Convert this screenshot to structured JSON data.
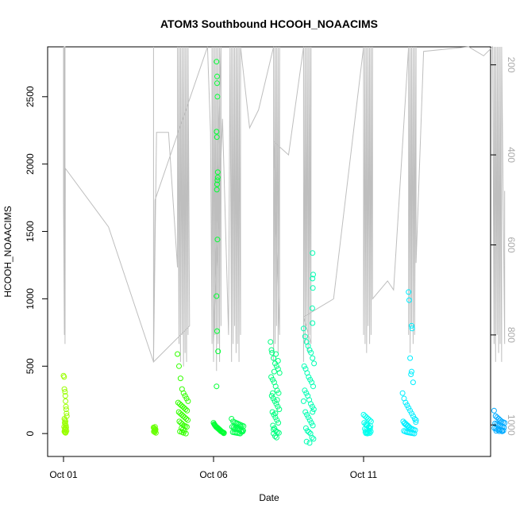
{
  "chart_data": {
    "type": "scatter",
    "title": "ATOM3 Southbound HCOOH_NOAACIMS",
    "xlabel": "Date",
    "ylabel": "HCOOH_NOAACIMS",
    "x_range_days": [
      0.0,
      14.83
    ],
    "ylim": [
      -170,
      2870
    ],
    "y_ticks": [
      0,
      500,
      1000,
      1500,
      2000,
      2500
    ],
    "x_ticks": [
      {
        "label": "Oct 01",
        "day": 0
      },
      {
        "label": "Oct 06",
        "day": 5
      },
      {
        "label": "Oct 11",
        "day": 10
      }
    ],
    "secondary_axis": {
      "description": "pressure",
      "lim": [
        1070,
        160
      ],
      "ticks": [
        200,
        400,
        600,
        800,
        1000
      ],
      "color": "#bebebe"
    },
    "grid": false,
    "legend": "none",
    "point_colors": {
      "oct01": "#99ff00",
      "oct04": "#66ff00",
      "oct05": "#33ff00",
      "oct06": "#00ff33",
      "oct07": "#00ff4d",
      "oct08": "#00ff80",
      "oct09": "#00ffb3",
      "oct11": "#00ffee",
      "oct12": "#00eeff",
      "oct14": "#00aaff"
    },
    "series": [
      {
        "color_key": "oct01",
        "x": [
          0.0,
          0.02,
          0.03,
          0.05,
          0.06,
          0.07,
          0.08,
          0.09,
          0.1,
          0.11,
          0.03,
          0.05,
          0.07,
          0.04,
          0.06,
          0.08,
          0.02,
          0.09,
          0.05,
          0.07,
          0.06,
          0.04,
          0.1,
          0.03,
          0.08,
          0.05,
          0.07
        ],
        "y": [
          430,
          420,
          330,
          310,
          280,
          240,
          200,
          180,
          150,
          130,
          110,
          100,
          90,
          80,
          70,
          60,
          50,
          45,
          40,
          35,
          30,
          25,
          20,
          15,
          10,
          8,
          5
        ]
      },
      {
        "color_key": "oct04",
        "x": [
          3.0,
          3.02,
          3.05,
          3.07,
          3.03,
          3.06,
          3.01,
          3.04,
          3.08,
          3.05
        ],
        "y": [
          45,
          40,
          35,
          30,
          25,
          20,
          15,
          10,
          5,
          50
        ]
      },
      {
        "color_key": "oct05",
        "x": [
          3.8,
          3.85,
          3.9,
          3.95,
          4.0,
          4.05,
          4.1,
          4.15,
          3.82,
          3.87,
          3.92,
          3.97,
          4.02,
          4.07,
          4.12,
          3.84,
          3.89,
          3.94,
          3.99,
          4.04,
          4.09,
          4.14,
          3.86,
          3.91,
          3.96,
          4.01,
          4.06,
          4.11,
          3.93,
          3.98,
          4.03,
          3.88,
          3.95,
          4.0,
          4.08
        ],
        "y": [
          590,
          500,
          410,
          330,
          300,
          280,
          260,
          240,
          230,
          220,
          210,
          200,
          190,
          180,
          170,
          160,
          150,
          140,
          130,
          120,
          110,
          100,
          90,
          80,
          70,
          60,
          55,
          50,
          40,
          30,
          20,
          15,
          10,
          5,
          0
        ]
      },
      {
        "color_key": "oct06",
        "x": [
          5.1,
          5.12,
          5.1,
          5.14,
          5.13,
          5.12,
          5.11,
          5.13,
          5.1,
          5.12,
          5.15,
          5.1,
          5.12,
          5.13,
          5.11,
          5.14,
          5.0,
          5.05,
          5.1,
          5.15,
          5.2,
          5.25,
          5.3,
          5.35,
          5.02,
          5.07,
          5.12,
          5.17,
          5.22,
          5.27,
          5.32,
          5.04,
          5.09,
          5.14,
          5.19,
          5.24,
          5.29,
          5.34
        ],
        "y": [
          2760,
          2650,
          2240,
          1940,
          1880,
          1850,
          1810,
          1440,
          1020,
          760,
          610,
          350,
          2600,
          2500,
          2200,
          1900,
          80,
          60,
          50,
          40,
          30,
          20,
          10,
          5,
          70,
          55,
          45,
          35,
          25,
          15,
          8,
          65,
          48,
          38,
          28,
          18,
          12,
          2
        ]
      },
      {
        "color_key": "oct07",
        "x": [
          5.6,
          5.65,
          5.7,
          5.75,
          5.8,
          5.85,
          5.9,
          5.95,
          6.0,
          5.62,
          5.67,
          5.72,
          5.77,
          5.82,
          5.87,
          5.92,
          5.97,
          5.64,
          5.69,
          5.74,
          5.79,
          5.84,
          5.89,
          5.94,
          5.99,
          5.7,
          5.8,
          5.9
        ],
        "y": [
          110,
          90,
          85,
          80,
          75,
          70,
          65,
          60,
          55,
          50,
          45,
          40,
          35,
          30,
          25,
          20,
          15,
          10,
          8,
          6,
          4,
          2,
          0,
          12,
          22,
          32,
          42,
          52
        ]
      },
      {
        "color_key": "oct08",
        "x": [
          6.9,
          6.95,
          7.0,
          7.05,
          7.1,
          7.15,
          7.2,
          6.92,
          6.97,
          7.02,
          7.07,
          7.12,
          7.17,
          6.94,
          6.99,
          7.04,
          7.09,
          7.14,
          7.19,
          6.96,
          7.01,
          7.06,
          7.11,
          7.16,
          6.98,
          7.03,
          7.08,
          7.13,
          7.18,
          7.0,
          7.05,
          7.1,
          6.93,
          7.08,
          7.15,
          7.02,
          6.97,
          7.12,
          7.06,
          7.0
        ],
        "y": [
          680,
          600,
          560,
          520,
          500,
          480,
          450,
          420,
          400,
          380,
          350,
          320,
          300,
          280,
          260,
          240,
          220,
          200,
          180,
          160,
          140,
          120,
          100,
          80,
          60,
          40,
          20,
          10,
          5,
          0,
          -20,
          -30,
          620,
          590,
          540,
          460,
          300,
          250,
          150,
          30
        ]
      },
      {
        "color_key": "oct09",
        "x": [
          8.3,
          8.32,
          8.3,
          8.31,
          8.29,
          8.3,
          8.0,
          8.05,
          8.1,
          8.15,
          8.2,
          8.25,
          8.3,
          8.35,
          8.02,
          8.07,
          8.12,
          8.17,
          8.22,
          8.27,
          8.32,
          8.04,
          8.09,
          8.14,
          8.19,
          8.24,
          8.29,
          8.34,
          8.06,
          8.11,
          8.16,
          8.21,
          8.26,
          8.31,
          8.08,
          8.13,
          8.18,
          8.23,
          8.28,
          8.33,
          8.1,
          8.2,
          8.0,
          8.3
        ],
        "y": [
          1340,
          1180,
          1150,
          1080,
          930,
          820,
          780,
          720,
          680,
          650,
          620,
          600,
          560,
          520,
          500,
          480,
          450,
          420,
          400,
          380,
          350,
          320,
          300,
          280,
          250,
          220,
          200,
          180,
          160,
          140,
          120,
          100,
          80,
          60,
          40,
          20,
          10,
          0,
          -30,
          -40,
          -60,
          -70,
          240,
          160
        ]
      },
      {
        "color_key": "oct11",
        "x": [
          10.0,
          10.05,
          10.1,
          10.15,
          10.2,
          10.25,
          10.02,
          10.07,
          10.12,
          10.17,
          10.22,
          10.04,
          10.09,
          10.14,
          10.19,
          10.24,
          10.06,
          10.11,
          10.16,
          10.21,
          10.08,
          10.13,
          10.18,
          10.23,
          10.1
        ],
        "y": [
          140,
          130,
          120,
          110,
          100,
          90,
          80,
          70,
          60,
          50,
          40,
          35,
          30,
          25,
          20,
          15,
          10,
          8,
          6,
          4,
          2,
          0,
          45,
          55,
          65
        ]
      },
      {
        "color_key": "oct12",
        "x": [
          11.5,
          11.52,
          11.6,
          11.62,
          11.55,
          11.6,
          11.58,
          11.65,
          11.3,
          11.35,
          11.4,
          11.45,
          11.5,
          11.55,
          11.6,
          11.65,
          11.7,
          11.75,
          11.32,
          11.37,
          11.42,
          11.47,
          11.52,
          11.57,
          11.62,
          11.67,
          11.72,
          11.34,
          11.39,
          11.44,
          11.49,
          11.54,
          11.59,
          11.64,
          11.69,
          11.74,
          11.36,
          11.41,
          11.46,
          11.51
        ],
        "y": [
          1050,
          990,
          800,
          780,
          560,
          460,
          440,
          380,
          300,
          260,
          230,
          210,
          190,
          170,
          150,
          130,
          110,
          100,
          90,
          80,
          70,
          60,
          50,
          40,
          35,
          30,
          25,
          20,
          15,
          10,
          8,
          6,
          4,
          2,
          0,
          85,
          75,
          65,
          55,
          45
        ]
      },
      {
        "color_key": "oct14",
        "x": [
          14.35,
          14.4,
          14.45,
          14.5,
          14.55,
          14.6,
          14.65,
          14.7,
          14.38,
          14.43,
          14.48,
          14.53,
          14.58,
          14.63,
          14.68,
          14.36,
          14.41,
          14.46,
          14.51,
          14.56,
          14.61,
          14.66,
          14.42,
          14.52,
          14.62
        ],
        "y": [
          170,
          130,
          120,
          110,
          100,
          90,
          85,
          80,
          75,
          70,
          65,
          60,
          55,
          50,
          45,
          40,
          35,
          30,
          28,
          26,
          24,
          22,
          20,
          18,
          16
        ]
      }
    ],
    "pressure_trace": {
      "color": "#bebebe",
      "x": [
        0.0,
        0.0,
        0.03,
        0.03,
        0.05,
        0.05,
        0.06,
        1.5,
        3.0,
        3.0,
        3.0,
        3.0,
        3.1,
        3.5,
        3.8,
        3.8,
        3.85,
        3.85,
        3.9,
        3.9,
        3.95,
        3.95,
        4.0,
        4.0,
        4.05,
        4.05,
        4.1,
        4.1,
        4.15,
        4.15,
        4.2,
        3.0,
        3.05,
        4.8,
        4.9,
        4.95,
        4.95,
        5.0,
        5.0,
        5.05,
        5.05,
        5.1,
        5.1,
        5.15,
        5.15,
        5.2,
        5.2,
        5.25,
        5.25,
        5.0,
        5.3,
        5.5,
        5.55,
        5.6,
        5.6,
        5.65,
        5.65,
        5.7,
        5.7,
        5.75,
        5.75,
        5.8,
        5.8,
        5.85,
        5.85,
        5.9,
        5.9,
        6.2,
        6.5,
        7.0,
        7.0,
        7.05,
        7.05,
        7.1,
        7.1,
        7.15,
        7.15,
        7.2,
        7.2,
        7.0,
        7.5,
        8.0,
        8.0,
        8.05,
        8.05,
        8.1,
        8.1,
        8.15,
        8.15,
        8.2,
        8.2,
        8.25,
        8.25,
        8.0,
        9.0,
        10.0,
        10.0,
        10.05,
        10.05,
        10.1,
        10.1,
        10.15,
        10.15,
        10.2,
        10.2,
        10.25,
        10.25,
        10.3,
        10.3,
        10.8,
        11.0,
        11.5,
        11.5,
        11.55,
        11.55,
        11.6,
        11.6,
        11.65,
        11.65,
        11.7,
        11.7,
        11.75,
        11.75,
        12.0,
        13.5,
        14.0,
        14.3,
        14.35,
        14.35,
        14.4,
        14.4,
        14.45,
        14.45,
        14.5,
        14.5,
        14.55,
        14.55,
        14.6,
        14.6,
        14.7,
        14.7
      ],
      "y": [
        160,
        500,
        800,
        160,
        160,
        820,
        430,
        560,
        860,
        160,
        520,
        860,
        350,
        350,
        650,
        160,
        820,
        160,
        860,
        160,
        800,
        160,
        870,
        160,
        840,
        160,
        860,
        160,
        800,
        160,
        780,
        860,
        500,
        160,
        350,
        820,
        160,
        860,
        160,
        800,
        160,
        880,
        160,
        820,
        160,
        860,
        160,
        780,
        160,
        820,
        320,
        800,
        160,
        860,
        160,
        820,
        160,
        780,
        160,
        840,
        160,
        820,
        160,
        860,
        160,
        800,
        160,
        340,
        300,
        160,
        860,
        160,
        820,
        160,
        780,
        160,
        840,
        160,
        800,
        370,
        400,
        160,
        860,
        160,
        820,
        160,
        780,
        160,
        840,
        160,
        800,
        160,
        820,
        760,
        720,
        160,
        800,
        160,
        820,
        160,
        840,
        160,
        780,
        160,
        820,
        160,
        800,
        160,
        720,
        680,
        700,
        160,
        800,
        160,
        840,
        160,
        780,
        160,
        820,
        160,
        800,
        160,
        640,
        170,
        160,
        180,
        160,
        820,
        160,
        860,
        160,
        800,
        160,
        840,
        160,
        820,
        160,
        860,
        160,
        820,
        480
      ]
    }
  }
}
